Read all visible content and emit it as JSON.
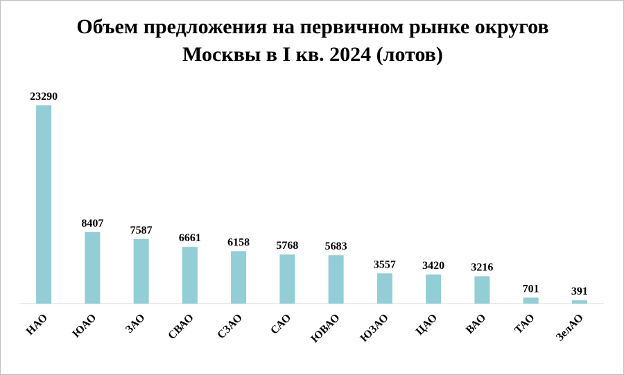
{
  "chart_data": {
    "type": "bar",
    "title": "Объем предложения на первичном рынке округов Москвы в I кв. 2024 (лотов)",
    "categories": [
      "НАО",
      "ЮАО",
      "ЗАО",
      "СВАО",
      "СЗАО",
      "САО",
      "ЮВАО",
      "ЮЗАО",
      "ЦАО",
      "ВАО",
      "ТАО",
      "ЗелАО"
    ],
    "values": [
      23290,
      8407,
      7587,
      6661,
      6158,
      5768,
      5683,
      3557,
      3420,
      3216,
      701,
      391
    ],
    "color": "#93cdd5"
  }
}
